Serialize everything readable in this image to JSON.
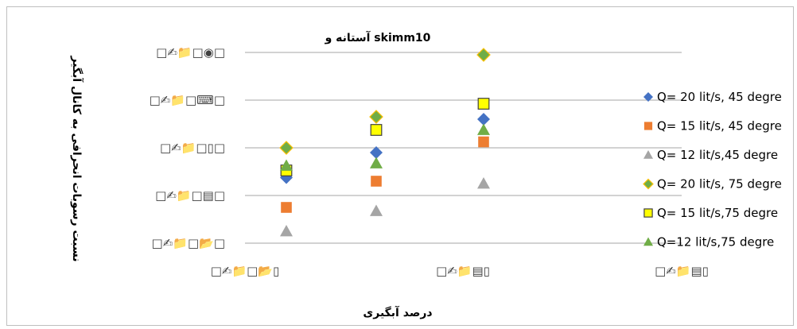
{
  "chart_data": {
    "type": "scatter",
    "title": "آستانه و skimm10",
    "xlabel": "درصد آبگیری",
    "ylabel": "نسبت رسوبات انحرافی به کانال آبگیر",
    "x_tick_labels": [
      "□✍📁□📂▯",
      "□✍📁▤▯",
      "□✍📁▤▯"
    ],
    "y_tick_labels": [
      "□✍📁□📂□",
      "□✍📁□▤□",
      "□✍📁□▯□",
      "□✍📁□⌨□",
      "□✍📁□◉□"
    ],
    "grid": true,
    "legend_position": "right",
    "series": [
      {
        "name": "Q= 20 lit/s, 45 degre",
        "marker": "diamond",
        "color": "#4472c4",
        "x": [
          1,
          2,
          3
        ],
        "y": [
          0.15,
          0.36,
          0.64
        ]
      },
      {
        "name": "Q= 15 lit/s, 45 degre",
        "marker": "square",
        "color": "#ed7d31",
        "x": [
          1,
          2,
          3
        ],
        "y": [
          -0.1,
          0.12,
          0.45
        ]
      },
      {
        "name": "Q= 12 lit/s,45 degre",
        "marker": "triangle",
        "color": "#a5a5a5",
        "x": [
          1,
          2,
          3
        ],
        "y": [
          -0.3,
          -0.13,
          0.1
        ]
      },
      {
        "name": "Q= 20 lit/s, 75 degre",
        "marker": "diamond",
        "color": "#70ad47",
        "border": "#ffc000",
        "x": [
          1,
          2,
          3
        ],
        "y": [
          0.4,
          0.66,
          1.18
        ]
      },
      {
        "name": "Q= 15 lit/s,75 degre",
        "marker": "square",
        "color": "#ffff00",
        "border": "#404040",
        "x": [
          1,
          2,
          3
        ],
        "y": [
          0.21,
          0.55,
          0.77
        ]
      },
      {
        "name": "Q=12 lit/s,75 degre",
        "marker": "triangle",
        "color": "#70ad47",
        "x": [
          1,
          2,
          3
        ],
        "y": [
          0.25,
          0.27,
          0.55
        ]
      }
    ]
  },
  "colors": {
    "grid": "#a6a6a6",
    "frame": "#bfbfbf"
  }
}
